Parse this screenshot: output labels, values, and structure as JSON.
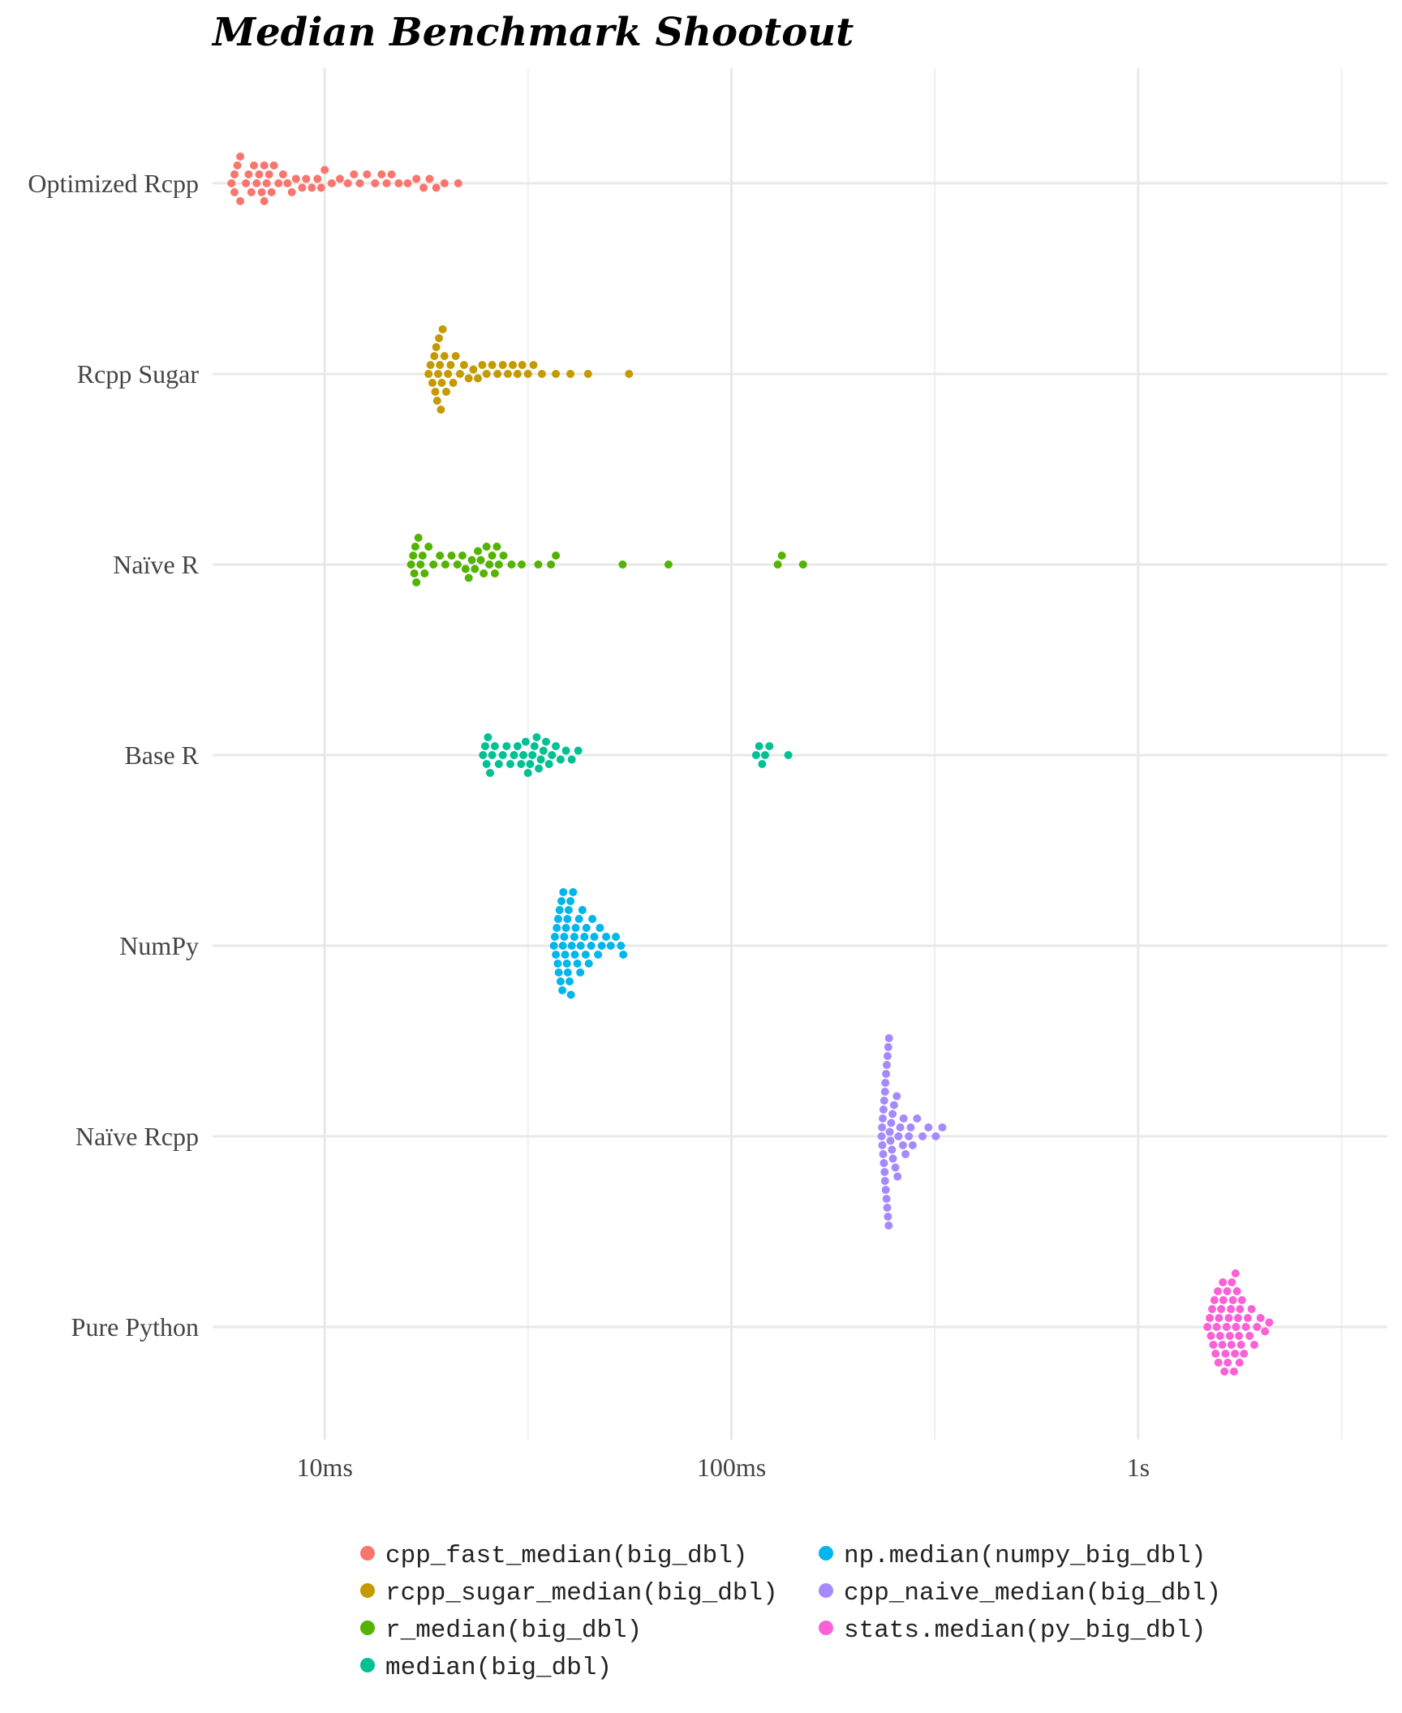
{
  "chart_data": {
    "type": "scatter",
    "subtype": "beeswarm",
    "title": "Median Benchmark Shootout",
    "xlabel": "",
    "ylabel": "",
    "x_scale": "log10",
    "x_unit": "seconds",
    "xlim": [
      0.0053,
      4.1
    ],
    "x_ticks": [
      {
        "value": 0.01,
        "label": "10ms"
      },
      {
        "value": 0.1,
        "label": "100ms"
      },
      {
        "value": 1,
        "label": "1s"
      }
    ],
    "categories": [
      "Optimized Rcpp",
      "Rcpp Sugar",
      "Naïve R",
      "Base R",
      "NumPy",
      "Naïve Rcpp",
      "Pure Python"
    ],
    "grid": true,
    "legend_position": "bottom",
    "series": [
      {
        "name": "cpp_fast_median(big_dbl)",
        "category": "Optimized Rcpp",
        "color": "#F8766D",
        "values": [
          0.0059,
          0.006,
          0.006,
          0.0061,
          0.0062,
          0.0062,
          0.0064,
          0.0065,
          0.0066,
          0.0067,
          0.0068,
          0.0069,
          0.007,
          0.0071,
          0.0071,
          0.0072,
          0.0073,
          0.0074,
          0.0075,
          0.0077,
          0.0079,
          0.0081,
          0.0083,
          0.0085,
          0.0088,
          0.009,
          0.0093,
          0.0096,
          0.0098,
          0.01,
          0.0104,
          0.0109,
          0.0114,
          0.0118,
          0.0122,
          0.0127,
          0.0133,
          0.0138,
          0.0142,
          0.0146,
          0.0152,
          0.016,
          0.0168,
          0.0175,
          0.0181,
          0.0188,
          0.0197,
          0.0213
        ]
      },
      {
        "name": "rcpp_sugar_median(big_dbl)",
        "category": "Rcpp Sugar",
        "color": "#C49A00",
        "values": [
          0.018,
          0.0182,
          0.0184,
          0.0186,
          0.0187,
          0.0188,
          0.0189,
          0.019,
          0.0191,
          0.0192,
          0.0193,
          0.0194,
          0.0195,
          0.0197,
          0.0199,
          0.0201,
          0.0204,
          0.0207,
          0.021,
          0.0215,
          0.022,
          0.0226,
          0.0232,
          0.0238,
          0.0244,
          0.025,
          0.0258,
          0.0266,
          0.0274,
          0.0282,
          0.029,
          0.0298,
          0.0306,
          0.0316,
          0.0326,
          0.0342,
          0.037,
          0.0402,
          0.0444,
          0.056
        ]
      },
      {
        "name": "r_median(big_dbl)",
        "category": "Naïve R",
        "color": "#53B400",
        "values": [
          0.0163,
          0.0165,
          0.0166,
          0.0167,
          0.0168,
          0.017,
          0.0172,
          0.0174,
          0.0176,
          0.018,
          0.0185,
          0.0192,
          0.0198,
          0.0205,
          0.0212,
          0.0218,
          0.0222,
          0.0226,
          0.023,
          0.0234,
          0.0238,
          0.0242,
          0.0246,
          0.025,
          0.0254,
          0.0258,
          0.0262,
          0.0265,
          0.0268,
          0.0275,
          0.0288,
          0.0305,
          0.0335,
          0.036,
          0.037,
          0.054,
          0.07,
          0.13,
          0.133,
          0.15
        ]
      },
      {
        "name": "median(big_dbl)",
        "category": "Base R",
        "color": "#00C094",
        "values": [
          0.0245,
          0.0248,
          0.025,
          0.0252,
          0.0255,
          0.0258,
          0.0262,
          0.0268,
          0.0274,
          0.028,
          0.0286,
          0.0292,
          0.0298,
          0.0304,
          0.0308,
          0.0312,
          0.0316,
          0.032,
          0.0324,
          0.0328,
          0.0332,
          0.0336,
          0.034,
          0.0345,
          0.035,
          0.0356,
          0.0362,
          0.037,
          0.038,
          0.0392,
          0.0405,
          0.042,
          0.115,
          0.117,
          0.119,
          0.121,
          0.124,
          0.138
        ]
      },
      {
        "name": "np.median(numpy_big_dbl)",
        "category": "NumPy",
        "color": "#00B6EB",
        "values": [
          0.0366,
          0.0368,
          0.037,
          0.0372,
          0.0374,
          0.0376,
          0.0378,
          0.038,
          0.0382,
          0.0384,
          0.0386,
          0.0388,
          0.039,
          0.0392,
          0.0394,
          0.0396,
          0.0398,
          0.04,
          0.0402,
          0.0405,
          0.0408,
          0.0411,
          0.0414,
          0.0418,
          0.0422,
          0.0426,
          0.043,
          0.0435,
          0.044,
          0.0446,
          0.0452,
          0.046,
          0.047,
          0.048,
          0.0492,
          0.0505,
          0.052,
          0.0535,
          0.0542,
          0.0375,
          0.0385,
          0.0395,
          0.0403,
          0.0412,
          0.0425,
          0.0438,
          0.0455,
          0.0475
        ]
      },
      {
        "name": "cpp_naive_median(big_dbl)",
        "category": "Naïve Rcpp",
        "color": "#A58AFF",
        "values": [
          0.234,
          0.235,
          0.2355,
          0.236,
          0.2365,
          0.237,
          0.2375,
          0.238,
          0.2385,
          0.239,
          0.2395,
          0.24,
          0.2405,
          0.241,
          0.2415,
          0.242,
          0.2425,
          0.243,
          0.244,
          0.245,
          0.246,
          0.247,
          0.248,
          0.2495,
          0.251,
          0.253,
          0.255,
          0.2575,
          0.26,
          0.264,
          0.268,
          0.273,
          0.279,
          0.286,
          0.295,
          0.305,
          0.318,
          0.33,
          0.2345,
          0.2385,
          0.2435,
          0.249,
          0.256,
          0.265,
          0.276
        ]
      },
      {
        "name": "stats.median(py_big_dbl)",
        "category": "Pure Python",
        "color": "#FB61D7",
        "values": [
          1.48,
          1.5,
          1.51,
          1.52,
          1.53,
          1.54,
          1.55,
          1.56,
          1.57,
          1.58,
          1.59,
          1.6,
          1.61,
          1.62,
          1.63,
          1.64,
          1.65,
          1.66,
          1.67,
          1.68,
          1.69,
          1.7,
          1.71,
          1.72,
          1.73,
          1.74,
          1.75,
          1.76,
          1.77,
          1.78,
          1.79,
          1.8,
          1.82,
          1.84,
          1.86,
          1.88,
          1.9,
          1.93,
          1.96,
          2.0,
          2.05,
          2.1,
          1.575,
          1.615,
          1.655,
          1.695,
          1.735,
          1.775
        ]
      }
    ]
  }
}
